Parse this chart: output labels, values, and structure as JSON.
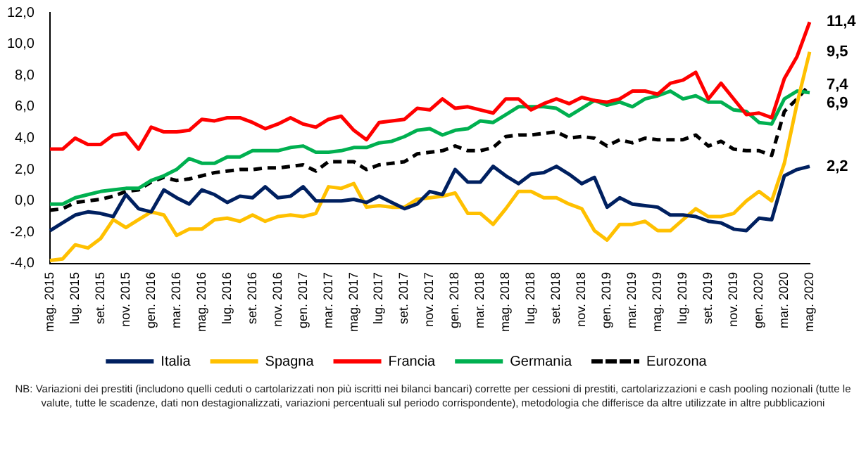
{
  "chart_data": {
    "type": "line",
    "categories": [
      "mag. 2015",
      null,
      "lug. 2015",
      null,
      "set. 2015",
      null,
      "nov. 2015",
      null,
      "gen. 2016",
      null,
      "mar. 2016",
      null,
      "mag. 2016",
      null,
      "lug. 2016",
      null,
      "set. 2016",
      null,
      "nov. 2016",
      null,
      "gen. 2017",
      null,
      "mar. 2017",
      null,
      "mag. 2017",
      null,
      "lug. 2017",
      null,
      "set. 2017",
      null,
      "nov. 2017",
      null,
      "gen. 2018",
      null,
      "mar. 2018",
      null,
      "mag. 2018",
      null,
      "lug. 2018",
      null,
      "set. 2018",
      null,
      "nov. 2018",
      null,
      "gen. 2019",
      null,
      "mar. 2019",
      null,
      "mag. 2019",
      null,
      "lug. 2019",
      null,
      "set. 2019",
      null,
      "nov. 2019",
      null,
      "gen. 2020",
      null,
      "mar. 2020",
      null,
      "mag. 2020"
    ],
    "series": [
      {
        "name": "Italia",
        "color": "#002060",
        "values": [
          -1.9,
          -1.4,
          -0.9,
          -0.7,
          -0.8,
          -1.0,
          0.4,
          -0.5,
          -0.7,
          0.7,
          0.2,
          -0.2,
          0.7,
          0.4,
          -0.1,
          0.3,
          0.2,
          0.9,
          0.2,
          0.3,
          0.9,
          0.0,
          0.0,
          0.0,
          0.1,
          -0.1,
          0.3,
          -0.1,
          -0.5,
          -0.2,
          0.6,
          0.4,
          2.0,
          1.2,
          1.2,
          2.2,
          1.6,
          1.1,
          1.7,
          1.8,
          2.2,
          1.7,
          1.1,
          1.5,
          -0.4,
          0.2,
          -0.2,
          -0.3,
          -0.4,
          -0.9,
          -0.9,
          -1.0,
          -1.3,
          -1.4,
          -1.8,
          -1.9,
          -1.1,
          -1.2,
          1.6,
          2.0,
          2.2
        ],
        "value_labels": [
          null,
          null,
          null,
          null,
          null,
          null,
          null,
          null,
          null,
          null,
          null,
          null,
          null,
          null,
          null,
          null,
          null,
          null,
          null,
          null,
          null,
          null,
          null,
          null,
          null,
          null,
          null,
          null,
          null,
          null,
          null,
          null,
          null,
          null,
          null,
          null,
          null,
          null,
          null,
          null,
          null,
          null,
          null,
          null,
          null,
          null,
          null,
          null,
          null,
          null,
          null,
          null,
          null,
          null,
          null,
          null,
          null,
          null,
          null,
          null,
          "2,2"
        ]
      },
      {
        "name": "Spagna",
        "color": "#ffc000",
        "values": [
          -3.8,
          -3.7,
          -2.8,
          -3.0,
          -2.4,
          -1.2,
          -1.7,
          -1.2,
          -0.7,
          -0.9,
          -2.2,
          -1.8,
          -1.8,
          -1.2,
          -1.1,
          -1.3,
          -0.9,
          -1.3,
          -1.0,
          -0.9,
          -1.0,
          -0.8,
          0.9,
          0.8,
          1.1,
          -0.4,
          -0.3,
          -0.4,
          -0.4,
          0.1,
          0.2,
          0.3,
          0.5,
          -0.8,
          -0.8,
          -1.5,
          -0.5,
          0.6,
          0.6,
          0.2,
          0.2,
          -0.2,
          -0.5,
          -1.9,
          -2.5,
          -1.5,
          -1.5,
          -1.3,
          -1.9,
          -1.9,
          -1.2,
          -0.5,
          -1.0,
          -1.0,
          -0.8,
          0.0,
          0.6,
          0.0,
          2.4,
          6.2,
          9.5
        ],
        "value_labels": [
          null,
          null,
          null,
          null,
          null,
          null,
          null,
          null,
          null,
          null,
          null,
          null,
          null,
          null,
          null,
          null,
          null,
          null,
          null,
          null,
          null,
          null,
          null,
          null,
          null,
          null,
          null,
          null,
          null,
          null,
          null,
          null,
          null,
          null,
          null,
          null,
          null,
          null,
          null,
          null,
          null,
          null,
          null,
          null,
          null,
          null,
          null,
          null,
          null,
          null,
          null,
          null,
          null,
          null,
          null,
          null,
          null,
          null,
          null,
          null,
          "9,5"
        ]
      },
      {
        "name": "Francia",
        "color": "#ff0000",
        "values": [
          3.3,
          3.3,
          4.0,
          3.6,
          3.6,
          4.2,
          4.3,
          3.3,
          4.7,
          4.4,
          4.4,
          4.5,
          5.2,
          5.1,
          5.3,
          5.3,
          5.0,
          4.6,
          4.9,
          5.3,
          4.9,
          4.7,
          5.2,
          5.4,
          4.5,
          3.9,
          5.0,
          5.1,
          5.2,
          5.9,
          5.8,
          6.5,
          5.9,
          6.0,
          5.8,
          5.6,
          6.5,
          6.5,
          5.8,
          6.2,
          6.5,
          6.2,
          6.6,
          6.4,
          6.3,
          6.5,
          7.0,
          7.0,
          6.8,
          7.5,
          7.7,
          8.2,
          6.5,
          7.5,
          6.5,
          5.5,
          5.6,
          5.3,
          7.8,
          9.2,
          11.4
        ],
        "value_labels": [
          null,
          null,
          null,
          null,
          null,
          null,
          null,
          null,
          null,
          null,
          null,
          null,
          null,
          null,
          null,
          null,
          null,
          null,
          null,
          null,
          null,
          null,
          null,
          null,
          null,
          null,
          null,
          null,
          null,
          null,
          null,
          null,
          null,
          null,
          null,
          null,
          null,
          null,
          null,
          null,
          null,
          null,
          null,
          null,
          null,
          null,
          null,
          null,
          null,
          null,
          null,
          null,
          null,
          null,
          null,
          null,
          null,
          null,
          null,
          null,
          "11,4"
        ]
      },
      {
        "name": "Germania",
        "color": "#00b050",
        "values": [
          -0.2,
          -0.2,
          0.2,
          0.4,
          0.6,
          0.7,
          0.8,
          0.8,
          1.3,
          1.6,
          2.0,
          2.7,
          2.4,
          2.4,
          2.8,
          2.8,
          3.2,
          3.2,
          3.2,
          3.4,
          3.5,
          3.1,
          3.1,
          3.2,
          3.4,
          3.4,
          3.7,
          3.8,
          4.1,
          4.5,
          4.6,
          4.2,
          4.5,
          4.6,
          5.1,
          5.0,
          5.5,
          6.0,
          6.0,
          6.0,
          5.9,
          5.4,
          5.9,
          6.4,
          6.1,
          6.3,
          6.0,
          6.5,
          6.7,
          7.0,
          6.5,
          6.7,
          6.3,
          6.3,
          5.8,
          5.7,
          5.0,
          4.9,
          6.5,
          7.0,
          6.9
        ],
        "value_labels": [
          null,
          null,
          null,
          null,
          null,
          null,
          null,
          null,
          null,
          null,
          null,
          null,
          null,
          null,
          null,
          null,
          null,
          null,
          null,
          null,
          null,
          null,
          null,
          null,
          null,
          null,
          null,
          null,
          null,
          null,
          null,
          null,
          null,
          null,
          null,
          null,
          null,
          null,
          null,
          null,
          null,
          null,
          null,
          null,
          null,
          null,
          null,
          null,
          null,
          null,
          null,
          null,
          null,
          null,
          null,
          null,
          null,
          null,
          null,
          null,
          "6,9"
        ]
      },
      {
        "name": "Eurozona",
        "color": "#000000",
        "line_style": "dashed",
        "values": [
          -0.6,
          -0.5,
          -0.1,
          0.0,
          0.1,
          0.3,
          0.6,
          0.7,
          1.2,
          1.5,
          1.3,
          1.4,
          1.6,
          1.8,
          1.9,
          2.0,
          2.0,
          2.1,
          2.1,
          2.2,
          2.3,
          1.9,
          2.5,
          2.5,
          2.5,
          2.0,
          2.3,
          2.4,
          2.5,
          3.0,
          3.1,
          3.2,
          3.5,
          3.2,
          3.2,
          3.4,
          4.1,
          4.2,
          4.2,
          4.3,
          4.4,
          4.0,
          4.1,
          4.0,
          3.5,
          3.9,
          3.7,
          4.0,
          3.9,
          3.9,
          3.9,
          4.2,
          3.5,
          3.8,
          3.3,
          3.2,
          3.2,
          2.9,
          5.7,
          6.5,
          7.4
        ],
        "value_labels": [
          null,
          null,
          null,
          null,
          null,
          null,
          null,
          null,
          null,
          null,
          null,
          null,
          null,
          null,
          null,
          null,
          null,
          null,
          null,
          null,
          null,
          null,
          null,
          null,
          null,
          null,
          null,
          null,
          null,
          null,
          null,
          null,
          null,
          null,
          null,
          null,
          null,
          null,
          null,
          null,
          null,
          null,
          null,
          null,
          null,
          null,
          null,
          null,
          null,
          null,
          null,
          null,
          null,
          null,
          null,
          null,
          null,
          null,
          null,
          null,
          "7,4"
        ]
      }
    ],
    "ylim": [
      -4,
      12
    ],
    "yticks": [
      {
        "value": -4,
        "label": "-4,0"
      },
      {
        "value": -2,
        "label": "-2,0"
      },
      {
        "value": 0,
        "label": "0,0"
      },
      {
        "value": 2,
        "label": "2,0"
      },
      {
        "value": 4,
        "label": "4,0"
      },
      {
        "value": 6,
        "label": "6,0"
      },
      {
        "value": 8,
        "label": "8,0"
      },
      {
        "value": 10,
        "label": "10,0"
      },
      {
        "value": 12,
        "label": "12,0"
      }
    ],
    "grid": false,
    "legend": "bottom",
    "marker": "none",
    "line_style": "solid",
    "annotations": [
      "NB: Variazioni dei prestiti (includono quelli ceduti o cartolarizzati non più iscritti nei bilanci bancari) corrette per cessioni di prestiti, cartolarizzazioni e cash pooling nozionali (tutte le valute, tutte le scadenze, dati non destagionalizzati, variazioni percentuali sul periodo corrispondente), metodologia che differisce da altre utilizzate in altre pubblicazioni"
    ]
  }
}
